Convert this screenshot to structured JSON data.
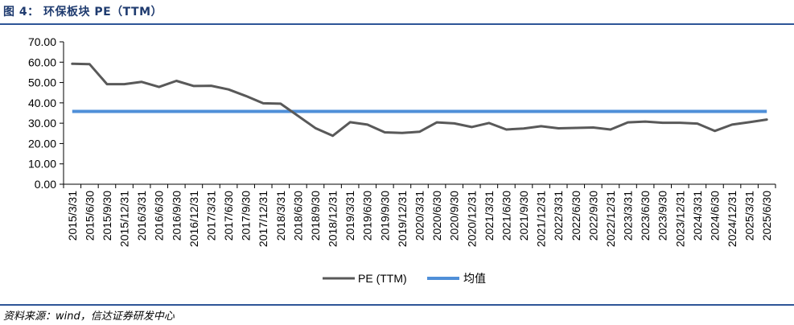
{
  "figure": {
    "title": "图 4： 环保板块 PE（TTM）",
    "source": "资料来源：wind，信达证券研发中心"
  },
  "colors": {
    "pe_line": "#595959",
    "avg_line": "#4f8fd8",
    "accent": "#2e5597"
  },
  "chart_data": {
    "type": "line",
    "x": [
      "2015/3/31",
      "2015/6/30",
      "2015/9/30",
      "2015/12/31",
      "2016/3/31",
      "2016/6/30",
      "2016/9/30",
      "2016/12/31",
      "2017/3/31",
      "2017/6/30",
      "2017/9/30",
      "2017/12/31",
      "2018/3/31",
      "2018/6/30",
      "2018/9/30",
      "2018/12/31",
      "2019/3/31",
      "2019/6/30",
      "2019/9/30",
      "2019/12/31",
      "2020/3/31",
      "2020/6/30",
      "2020/9/30",
      "2020/12/31",
      "2021/3/31",
      "2021/6/30",
      "2021/9/30",
      "2021/12/31",
      "2022/3/31",
      "2022/6/30",
      "2022/9/30",
      "2022/12/31",
      "2023/3/31",
      "2023/6/30",
      "2023/9/30",
      "2023/12/31",
      "2024/3/31",
      "2024/6/30",
      "2024/12/31",
      "2025/3/31",
      "2025/6/30"
    ],
    "series": [
      {
        "name": "PE (TTM)",
        "values": [
          59.2,
          59.0,
          49.2,
          49.2,
          50.3,
          47.8,
          50.8,
          48.3,
          48.4,
          46.6,
          43.4,
          39.8,
          39.6,
          33.6,
          27.6,
          23.8,
          30.5,
          29.3,
          25.5,
          25.2,
          25.8,
          30.4,
          29.9,
          28.1,
          30.1,
          26.9,
          27.4,
          28.5,
          27.5,
          27.7,
          27.9,
          26.9,
          30.4,
          30.8,
          30.2,
          30.2,
          29.8,
          26.2,
          29.3,
          30.5,
          31.8
        ]
      },
      {
        "name": "均值",
        "values": [
          35.8,
          35.8,
          35.8,
          35.8,
          35.8,
          35.8,
          35.8,
          35.8,
          35.8,
          35.8,
          35.8,
          35.8,
          35.8,
          35.8,
          35.8,
          35.8,
          35.8,
          35.8,
          35.8,
          35.8,
          35.8,
          35.8,
          35.8,
          35.8,
          35.8,
          35.8,
          35.8,
          35.8,
          35.8,
          35.8,
          35.8,
          35.8,
          35.8,
          35.8,
          35.8,
          35.8,
          35.8,
          35.8,
          35.8,
          35.8,
          35.8
        ]
      }
    ],
    "y_ticks": [
      "0.00",
      "10.00",
      "20.00",
      "30.00",
      "40.00",
      "50.00",
      "60.00",
      "70.00"
    ],
    "ylim": [
      0,
      70
    ],
    "legend_position": "bottom-center",
    "grid": false
  }
}
